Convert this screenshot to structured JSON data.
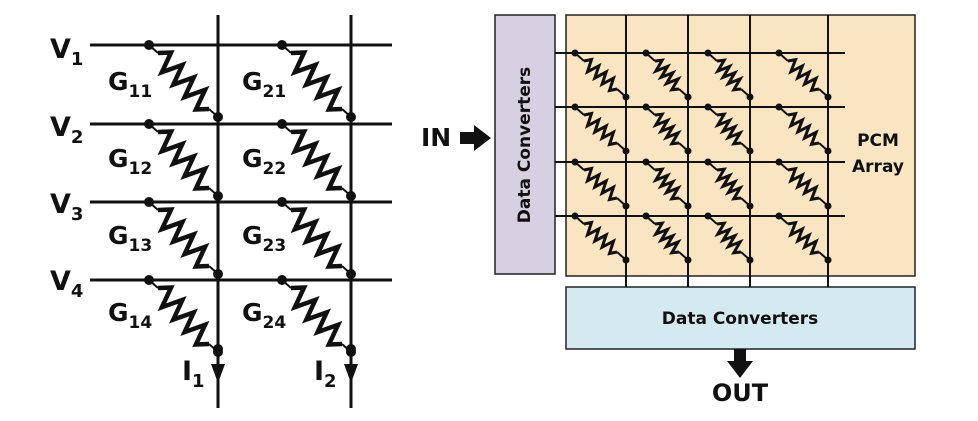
{
  "left_crossbar": {
    "voltage_labels": [
      {
        "main": "V",
        "sub": "1"
      },
      {
        "main": "V",
        "sub": "2"
      },
      {
        "main": "V",
        "sub": "3"
      },
      {
        "main": "V",
        "sub": "4"
      }
    ],
    "conductance_labels": [
      [
        {
          "main": "G",
          "sub": "11"
        },
        {
          "main": "G",
          "sub": "21"
        }
      ],
      [
        {
          "main": "G",
          "sub": "12"
        },
        {
          "main": "G",
          "sub": "22"
        }
      ],
      [
        {
          "main": "G",
          "sub": "13"
        },
        {
          "main": "G",
          "sub": "23"
        }
      ],
      [
        {
          "main": "G",
          "sub": "14"
        },
        {
          "main": "G",
          "sub": "24"
        }
      ]
    ],
    "current_labels": [
      {
        "main": "I",
        "sub": "1"
      },
      {
        "main": "I",
        "sub": "2"
      }
    ]
  },
  "right_system": {
    "input_label": "IN",
    "output_label": "OUT",
    "row_converter_label": "Data Converters",
    "column_converter_label": "Data Converters",
    "array_label_line1": "PCM",
    "array_label_line2": "Array",
    "array_rows": 4,
    "array_cols": 4
  },
  "colors": {
    "array_fill": "#fae5c3",
    "row_converter_fill": "#d6d0e2",
    "column_converter_fill": "#d5e9f0",
    "ink": "#111111"
  }
}
